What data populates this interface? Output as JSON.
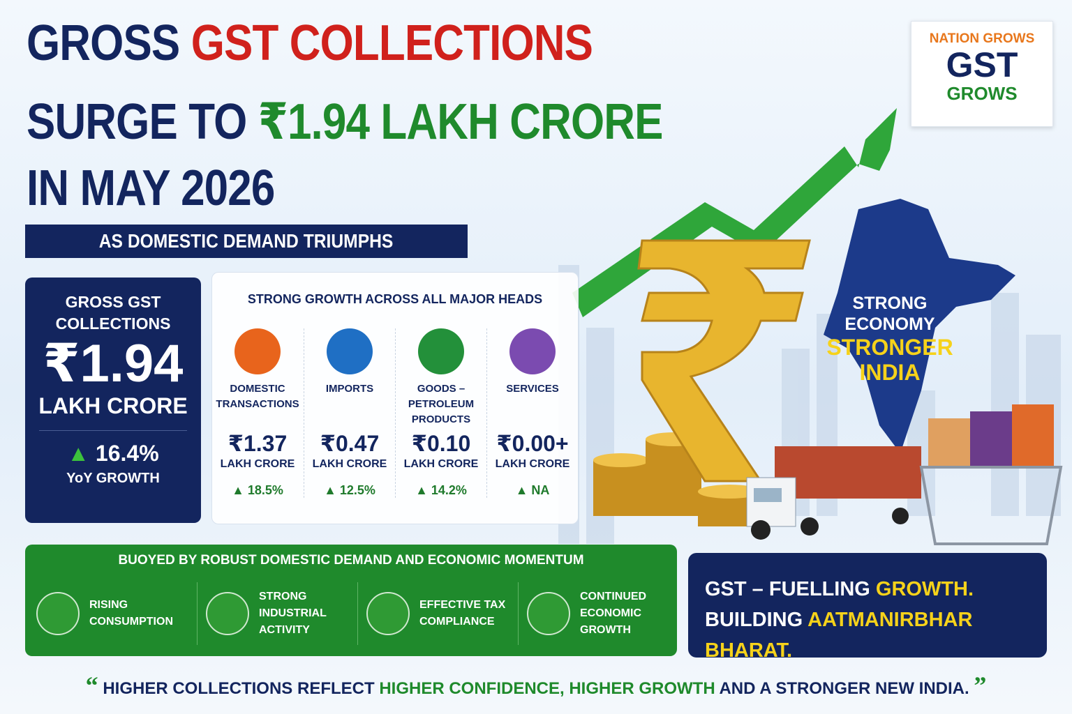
{
  "title": {
    "line1": [
      "GROSS",
      "GST COLLECTIONS"
    ],
    "line2": [
      "SURGE TO",
      "₹1.94 LAKH CRORE"
    ],
    "line3": "IN MAY 2026"
  },
  "subtitle": "AS DOMESTIC DEMAND TRIUMPHS",
  "badge": {
    "top": "NATION GROWS",
    "middle": "GST",
    "bottom": "GROWS"
  },
  "summary": {
    "label": "GROSS GST COLLECTIONS",
    "value": "₹1.94",
    "unit": "LAKH CRORE",
    "growth": "16.4%",
    "growth_label": "YoY GROWTH"
  },
  "heads": {
    "title": "STRONG GROWTH ACROSS ALL MAJOR HEADS",
    "items": [
      {
        "name": "DOMESTIC TRANSACTIONS",
        "value": "₹1.37",
        "unit": "LAKH CRORE",
        "growth": "18.5%",
        "color": "#e8641c"
      },
      {
        "name": "IMPORTS",
        "value": "₹0.47",
        "unit": "LAKH CRORE",
        "growth": "12.5%",
        "color": "#1f6fc4"
      },
      {
        "name": "GOODS – PETROLEUM PRODUCTS",
        "value": "₹0.10",
        "unit": "LAKH CRORE",
        "growth": "14.2%",
        "color": "#23903a"
      },
      {
        "name": "SERVICES",
        "value": "₹0.00+",
        "unit": "LAKH CRORE",
        "growth": "NA",
        "color": "#7b4bb0"
      }
    ]
  },
  "map_text": {
    "line1": "STRONG ECONOMY",
    "line2": "STRONGER INDIA"
  },
  "drivers": {
    "title": "BUOYED BY ROBUST DOMESTIC DEMAND AND ECONOMIC MOMENTUM",
    "items": [
      "RISING CONSUMPTION",
      "STRONG INDUSTRIAL ACTIVITY",
      "EFFECTIVE TAX COMPLIANCE",
      "CONTINUED ECONOMIC GROWTH"
    ]
  },
  "tagline": {
    "line1": [
      "GST – FUELLING",
      "GROWTH."
    ],
    "line2": [
      "BUILDING",
      "AATMANIRBHAR BHARAT."
    ]
  },
  "quote": [
    "HIGHER COLLECTIONS REFLECT",
    "HIGHER CONFIDENCE, HIGHER GROWTH",
    "AND A STRONGER NEW INDIA."
  ]
}
